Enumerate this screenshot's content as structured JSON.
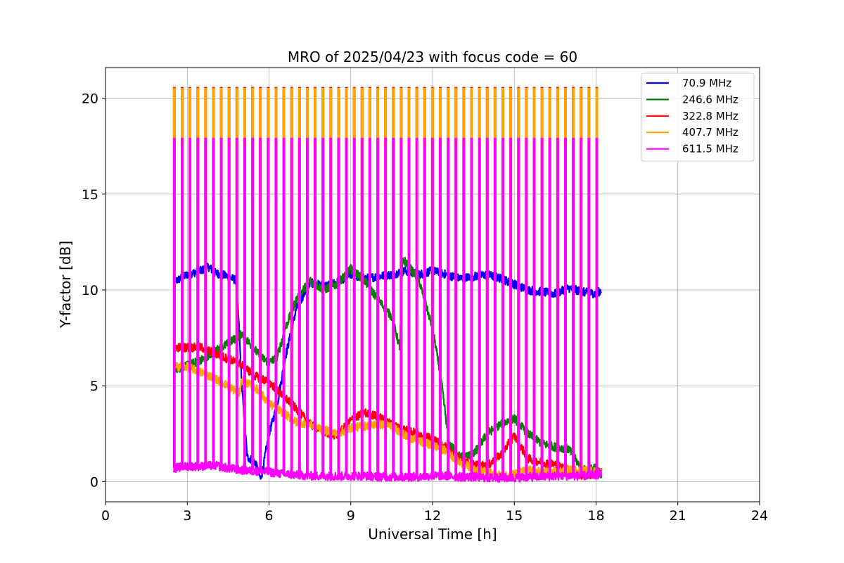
{
  "chart_data": {
    "type": "line",
    "title": "MRO of 2025/04/23 with focus code = 60",
    "xlabel": "Universal Time [h]",
    "ylabel": "Y-factor [dB]",
    "xlim": [
      0,
      24
    ],
    "ylim": [
      -1.05,
      21.6
    ],
    "xticks": [
      0,
      3,
      6,
      9,
      12,
      15,
      18,
      21,
      24
    ],
    "yticks": [
      0,
      5,
      10,
      15,
      20
    ],
    "grid": true,
    "legend_position": "top-right",
    "calibration_pulses": {
      "start_hour": 2.5,
      "end_hour": 18.0,
      "count": 55,
      "pulse_level_db": 20.5,
      "pulse_level_611_db": 17.9,
      "pulse_width_hours": 0.05
    },
    "series": [
      {
        "name": " 70.9 MHz",
        "color": "#0000ff",
        "x": [
          2.5,
          3.0,
          3.5,
          3.8,
          4.0,
          4.5,
          4.8,
          4.9,
          5.0,
          5.2,
          5.5,
          5.7,
          6.0,
          6.3,
          6.6,
          7.0,
          7.5,
          8.0,
          8.5,
          9.0,
          9.5,
          10.0,
          10.5,
          11.0,
          11.5,
          12.0,
          12.5,
          13.0,
          13.5,
          14.0,
          14.5,
          15.0,
          15.5,
          16.0,
          16.5,
          17.0,
          17.5,
          18.0,
          18.2
        ],
        "y": [
          10.4,
          10.8,
          11.0,
          11.2,
          10.9,
          10.7,
          10.5,
          8.0,
          5.0,
          1.3,
          1.0,
          0.1,
          2.5,
          4.0,
          6.5,
          9.0,
          10.4,
          10.2,
          10.4,
          10.8,
          10.6,
          10.7,
          10.8,
          11.0,
          10.8,
          11.0,
          10.8,
          10.6,
          10.7,
          10.8,
          10.6,
          10.3,
          10.0,
          9.9,
          9.8,
          10.1,
          9.9,
          9.8,
          10.0
        ]
      },
      {
        "name": "246.6 MHz",
        "color": "#008000",
        "x": [
          2.5,
          3.0,
          3.5,
          4.0,
          4.5,
          5.0,
          5.3,
          5.7,
          6.0,
          6.3,
          6.6,
          7.0,
          7.5,
          8.0,
          8.5,
          9.0,
          9.5,
          10.0,
          10.5,
          10.8,
          10.9,
          11.0,
          11.5,
          12.0,
          12.3,
          12.6,
          13.0,
          13.5,
          14.0,
          14.5,
          15.0,
          15.5,
          16.0,
          16.5,
          17.0,
          17.5,
          18.0,
          18.2
        ],
        "y": [
          5.8,
          6.1,
          6.3,
          6.8,
          7.2,
          7.7,
          7.2,
          6.5,
          6.2,
          6.5,
          8.0,
          9.5,
          10.5,
          10.0,
          10.3,
          11.1,
          10.5,
          9.5,
          8.6,
          7.0,
          11.5,
          11.5,
          10.5,
          8.0,
          5.5,
          2.0,
          1.3,
          1.4,
          2.5,
          3.0,
          3.3,
          2.5,
          2.0,
          1.8,
          1.7,
          0.6,
          0.7,
          0.3
        ]
      },
      {
        "name": "322.8 MHz",
        "color": "#ff0000",
        "x": [
          2.5,
          3.0,
          3.5,
          4.0,
          4.5,
          5.0,
          5.5,
          6.0,
          6.5,
          7.0,
          7.5,
          8.0,
          8.5,
          9.0,
          9.5,
          10.0,
          10.5,
          11.0,
          11.5,
          12.0,
          12.5,
          13.0,
          13.5,
          14.0,
          14.5,
          15.0,
          15.5,
          16.0,
          16.5,
          17.0,
          17.5,
          18.0,
          18.2
        ],
        "y": [
          7.0,
          7.0,
          7.0,
          6.7,
          6.4,
          6.1,
          5.5,
          5.2,
          4.5,
          3.8,
          3.0,
          2.6,
          2.4,
          3.2,
          3.6,
          3.4,
          3.0,
          2.7,
          2.5,
          2.2,
          1.8,
          1.2,
          0.9,
          0.8,
          1.4,
          2.4,
          1.2,
          1.0,
          0.9,
          0.6,
          0.3,
          0.4,
          0.5
        ]
      },
      {
        "name": "407.7 MHz",
        "color": "#ffa500",
        "x": [
          2.5,
          3.0,
          3.5,
          4.0,
          4.5,
          4.9,
          5.0,
          5.5,
          6.0,
          6.5,
          7.0,
          7.5,
          8.0,
          8.5,
          9.0,
          9.5,
          10.0,
          10.5,
          11.0,
          11.5,
          12.0,
          12.5,
          13.0,
          13.5,
          14.0,
          14.5,
          15.0,
          15.5,
          16.0,
          16.5,
          17.0,
          17.5,
          18.0,
          18.2
        ],
        "y": [
          6.0,
          6.0,
          5.7,
          5.4,
          5.0,
          4.6,
          5.3,
          4.9,
          4.1,
          3.6,
          3.1,
          3.0,
          2.7,
          2.5,
          2.8,
          2.9,
          3.0,
          2.9,
          2.4,
          2.1,
          1.9,
          1.6,
          1.0,
          0.7,
          0.5,
          0.3,
          0.4,
          0.6,
          0.5,
          0.5,
          0.6,
          0.6,
          0.5,
          0.5
        ]
      },
      {
        "name": "611.5 MHz",
        "color": "#ff00ff",
        "x": [
          2.5,
          3.0,
          3.5,
          4.0,
          4.5,
          5.0,
          5.5,
          6.0,
          6.5,
          7.0,
          7.5,
          8.0,
          8.5,
          9.0,
          9.5,
          10.0,
          10.5,
          11.0,
          11.5,
          12.0,
          12.5,
          13.0,
          13.5,
          14.0,
          14.5,
          15.0,
          15.5,
          16.0,
          16.5,
          17.0,
          17.5,
          18.0,
          18.2
        ],
        "y": [
          0.7,
          0.8,
          0.8,
          0.85,
          0.7,
          0.6,
          0.55,
          0.5,
          0.4,
          0.35,
          0.3,
          0.3,
          0.28,
          0.3,
          0.3,
          0.25,
          0.25,
          0.25,
          0.25,
          0.3,
          0.3,
          0.25,
          0.25,
          0.2,
          0.2,
          0.2,
          0.25,
          0.25,
          0.3,
          0.3,
          0.3,
          0.35,
          0.4
        ]
      }
    ]
  }
}
